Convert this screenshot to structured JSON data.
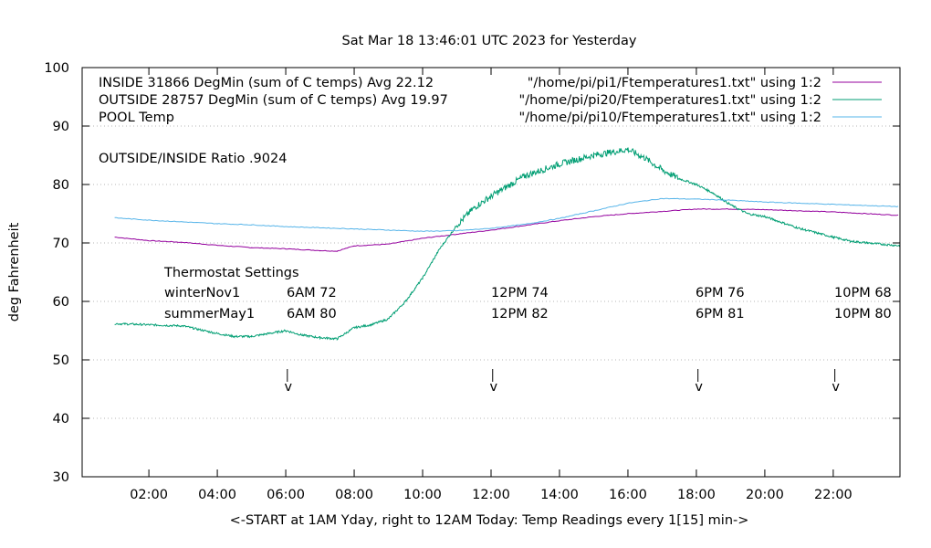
{
  "chart_data": {
    "type": "line",
    "title": "Sat Mar 18 13:46:01 UTC 2023 for Yesterday",
    "xlabel": "<-START at 1AM Yday, right to 12AM Today:  Temp Readings every 1[15] min->",
    "ylabel": "deg Fahrenheit",
    "ylim": [
      30,
      100
    ],
    "xlim_hours": [
      0.05,
      23.95
    ],
    "yticks": [
      30,
      40,
      50,
      60,
      70,
      80,
      90,
      100
    ],
    "xticks": [
      {
        "hour": 2,
        "label": "02:00"
      },
      {
        "hour": 4,
        "label": "04:00"
      },
      {
        "hour": 6,
        "label": "06:00"
      },
      {
        "hour": 8,
        "label": "08:00"
      },
      {
        "hour": 10,
        "label": "10:00"
      },
      {
        "hour": 12,
        "label": "12:00"
      },
      {
        "hour": 14,
        "label": "14:00"
      },
      {
        "hour": 16,
        "label": "16:00"
      },
      {
        "hour": 18,
        "label": "18:00"
      },
      {
        "hour": 20,
        "label": "20:00"
      },
      {
        "hour": 22,
        "label": "22:00"
      }
    ],
    "grid": true,
    "legend_position": "top",
    "series": [
      {
        "name": "INSIDE 31866 DegMin (sum of C temps) Avg 22.12",
        "source": "\"/home/pi/pi1/Ftemperatures1.txt\" using 1:2",
        "color": "#94009e",
        "x": [
          1,
          2,
          3,
          4,
          5,
          6,
          7,
          7.5,
          8,
          9,
          10,
          11,
          12,
          13,
          14,
          15,
          16,
          17,
          18,
          19,
          20,
          21,
          22,
          23,
          24
        ],
        "y": [
          71,
          70.4,
          70.1,
          69.6,
          69.2,
          69,
          68.7,
          68.6,
          69.5,
          69.8,
          70.8,
          71.5,
          72.2,
          73,
          73.8,
          74.5,
          75,
          75.4,
          75.8,
          75.8,
          75.7,
          75.5,
          75.3,
          75,
          74.7
        ]
      },
      {
        "name": "OUTSIDE 28757 DegMin (sum of C temps) Avg 19.97",
        "source": "\"/home/pi/pi20/Ftemperatures1.txt\" using 1:2",
        "color": "#009e73",
        "x": [
          1,
          2,
          3,
          4,
          4.5,
          5,
          6,
          6.5,
          7,
          7.5,
          8,
          8.5,
          9,
          9.5,
          10,
          10.5,
          11,
          11.5,
          12,
          13,
          14,
          15,
          15.5,
          16,
          16.5,
          17,
          17.5,
          18,
          18.5,
          19,
          19.5,
          20,
          21,
          22,
          22.5,
          23,
          24
        ],
        "y": [
          56.2,
          56,
          55.8,
          54.5,
          54,
          54,
          55,
          54.2,
          53.8,
          53.6,
          55.5,
          56,
          57,
          60,
          64,
          69,
          73,
          76,
          78,
          81.5,
          83.5,
          85,
          85.5,
          86,
          84.5,
          82.5,
          81,
          80,
          78.5,
          76.5,
          75,
          74.5,
          72.5,
          71,
          70.3,
          70,
          69.5
        ]
      },
      {
        "name": "POOL Temp",
        "source": "\"/home/pi/pi10/Ftemperatures1.txt\" using 1:2",
        "color": "#56b4e9",
        "x": [
          1,
          2,
          3,
          4,
          5,
          6,
          7,
          8,
          9,
          10,
          11,
          12,
          13,
          14,
          15,
          16,
          17,
          18,
          19,
          20,
          21,
          22,
          23,
          24
        ],
        "y": [
          74.3,
          73.9,
          73.6,
          73.3,
          73.1,
          72.8,
          72.6,
          72.4,
          72.2,
          72,
          72.1,
          72.5,
          73.2,
          74.2,
          75.5,
          76.8,
          77.6,
          77.5,
          77.3,
          77,
          76.8,
          76.6,
          76.4,
          76.2
        ]
      }
    ],
    "annotations": {
      "ratio": "OUTSIDE/INSIDE Ratio .9024",
      "thermostat_heading": "Thermostat Settings",
      "rows": [
        {
          "label": "winterNov1",
          "values": [
            "6AM 72",
            "12PM 74",
            "6PM 76",
            "10PM 68"
          ]
        },
        {
          "label": "summerMay1",
          "values": [
            "6AM 80",
            "12PM 82",
            "6PM 81",
            "10PM 80"
          ]
        }
      ],
      "markers": [
        {
          "hour": 6.1,
          "glyph": "v"
        },
        {
          "hour": 12.1,
          "glyph": "v"
        },
        {
          "hour": 18.1,
          "glyph": "v"
        },
        {
          "hour": 22.1,
          "glyph": "v"
        }
      ]
    }
  }
}
